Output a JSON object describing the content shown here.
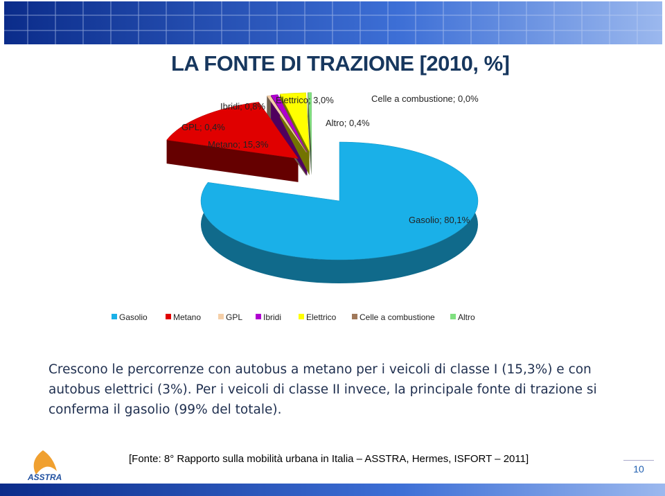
{
  "slide": {
    "title": "LA FONTE DI TRAZIONE [2010, %]",
    "body_text": "Crescono le percorrenze con autobus a metano per i veicoli di classe I (15,3%) e con autobus elettrici (3%). Per i veicoli di classe II invece, la principale fonte di trazione si conferma il gasolio (99% del totale).",
    "source": "[Fonte: 8° Rapporto sulla mobilità urbana in Italia – ASSTRA, Hermes, ISFORT – 2011]",
    "logo": "ASSTRA",
    "page_number": "10"
  },
  "chart_data": {
    "type": "pie",
    "categories": [
      "Gasolio",
      "Metano",
      "GPL",
      "Ibridi",
      "Elettrico",
      "Celle a combustione",
      "Altro"
    ],
    "values": [
      80.1,
      15.3,
      0.4,
      0.8,
      3.0,
      0.0,
      0.4
    ],
    "value_labels": [
      "Gasolio; 80,1%",
      "Metano; 15,3%",
      "GPL; 0,4%",
      "Ibridi; 0,8%",
      "Elettrico; 3,0%",
      "Celle a combustione; 0,0%",
      "Altro; 0,4%"
    ],
    "colors": [
      "#1ab0e8",
      "#e00000",
      "#f5cfa8",
      "#b000d0",
      "#ffff00",
      "#a0785a",
      "#80e080"
    ],
    "legend": "bottom"
  }
}
